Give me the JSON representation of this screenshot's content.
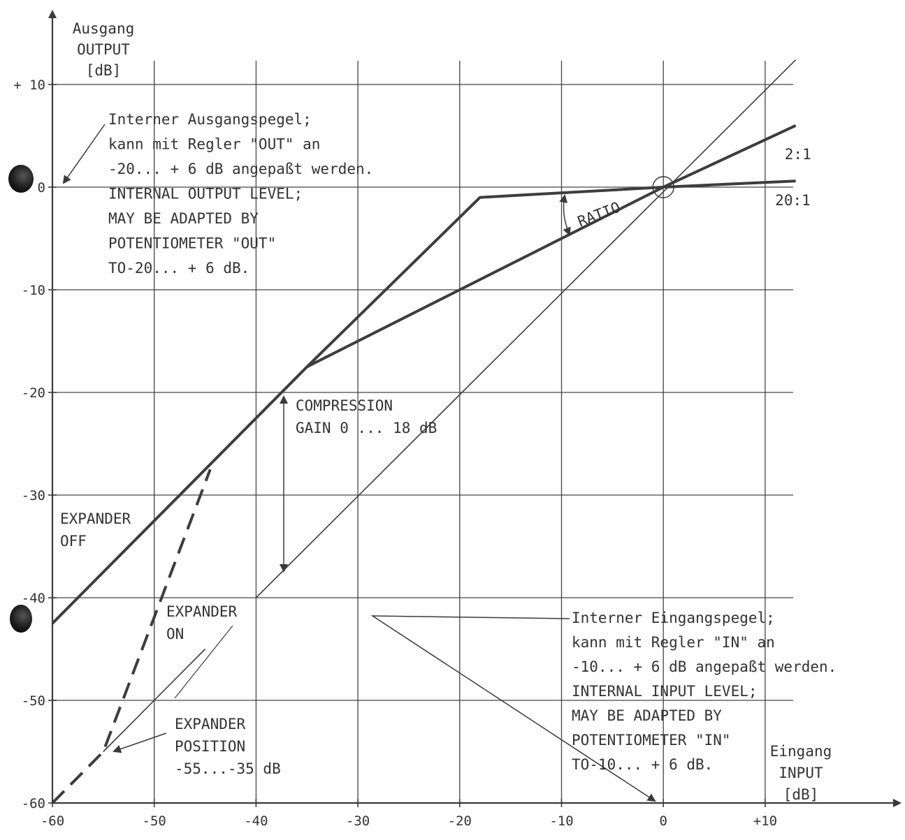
{
  "chart_data": {
    "type": "line",
    "xlim": [
      -60,
      13
    ],
    "ylim": [
      -60,
      12
    ],
    "grid": true,
    "x_ticks": [
      {
        "value": -60,
        "label": "-60"
      },
      {
        "value": -50,
        "label": "-50"
      },
      {
        "value": -40,
        "label": "-40"
      },
      {
        "value": -30,
        "label": "-30"
      },
      {
        "value": -20,
        "label": "-20"
      },
      {
        "value": -10,
        "label": "-10"
      },
      {
        "value": 0,
        "label": "0"
      },
      {
        "value": 10,
        "label": "+10"
      }
    ],
    "y_ticks": [
      {
        "value": 10,
        "label": "+ 10"
      },
      {
        "value": 0,
        "label": "0"
      },
      {
        "value": -10,
        "label": "-10"
      },
      {
        "value": -20,
        "label": "-20"
      },
      {
        "value": -30,
        "label": "-30"
      },
      {
        "value": -40,
        "label": "-40"
      },
      {
        "value": -50,
        "label": "-50"
      },
      {
        "value": -60,
        "label": "-60"
      }
    ],
    "y_axis_label": [
      "Ausgang",
      "OUTPUT",
      "[dB]"
    ],
    "x_axis_label": [
      "Eingang",
      "INPUT",
      "[dB]"
    ],
    "series": [
      {
        "style": "thin",
        "points": [
          [
            -40,
            -40
          ],
          [
            13,
            12.4
          ]
        ]
      },
      {
        "style": "thin",
        "points": [
          [
            -55,
            -55
          ],
          [
            -45,
            -45
          ]
        ]
      },
      {
        "style": "thick",
        "points": [
          [
            -60,
            -42.5
          ],
          [
            -35,
            -17.5
          ],
          [
            -18,
            -1
          ],
          [
            0,
            0
          ],
          [
            13,
            0.6
          ]
        ]
      },
      {
        "style": "thick",
        "points": [
          [
            -35,
            -17.5
          ],
          [
            0,
            0
          ],
          [
            13,
            6
          ]
        ]
      },
      {
        "style": "dashed",
        "points": [
          [
            -60,
            -60
          ],
          [
            -55,
            -55
          ],
          [
            -44.5,
            -27.5
          ]
        ]
      }
    ],
    "curve_labels": [
      {
        "text": "2:1",
        "at": [
          11.5,
          3
        ]
      },
      {
        "text": "20:1",
        "at": [
          11,
          -1.5
        ]
      }
    ],
    "annotations": [
      {
        "lines": [
          "RATIO"
        ]
      },
      {
        "lines": [
          "COMPRESSION",
          "GAIN 0 ... 18 dB"
        ]
      },
      {
        "lines": [
          "EXPANDER",
          "OFF"
        ]
      },
      {
        "lines": [
          "EXPANDER",
          "ON"
        ]
      },
      {
        "lines": [
          "EXPANDER",
          "POSITION",
          "-55...-35 dB"
        ]
      },
      {
        "lines": [
          "Interner Ausgangspegel;",
          "kann mit Regler \"OUT\" an",
          "-20... + 6 dB angepaßt werden.",
          "INTERNAL OUTPUT LEVEL;",
          "MAY BE ADAPTED BY",
          "POTENTIOMETER \"OUT\"",
          "TO-20... + 6 dB."
        ]
      },
      {
        "lines": [
          "Interner Eingangspegel;",
          "kann mit Regler \"IN\" an",
          "-10... + 6 dB angepaßt werden.",
          "INTERNAL INPUT LEVEL;",
          "MAY BE ADAPTED BY",
          "POTENTIOMETER \"IN\"",
          "TO-10... + 6 dB."
        ]
      }
    ]
  }
}
